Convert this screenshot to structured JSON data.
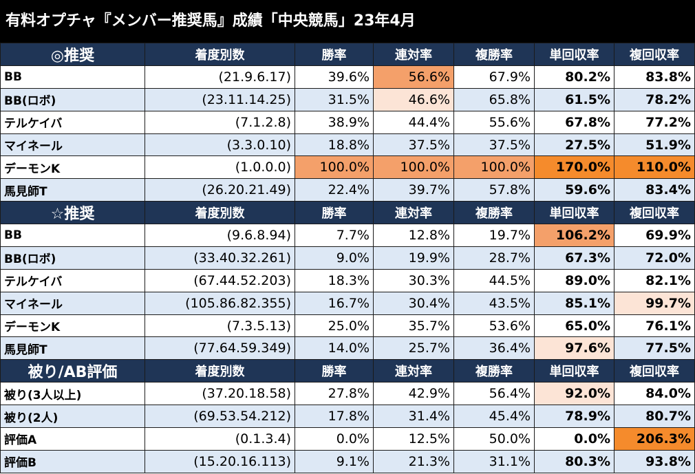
{
  "title": "有料オプチャ『メンバー推奨馬』成績「中央競馬」23年4月",
  "columns": [
    "着度別数",
    "勝率",
    "連対率",
    "複勝率",
    "単回収率",
    "複回収率"
  ],
  "colors": {
    "header": "#1f3556",
    "alt_row": "#dde8f5",
    "hl_strong": "#f58b2c",
    "hl_mid": "#f5b084",
    "hl_light": "#fce4d6"
  },
  "sections": [
    {
      "label": "◎推奨",
      "rows": [
        {
          "name": "BB",
          "counts": "(21.9.6.17)",
          "win": "39.6%",
          "place2": "56.6%",
          "place3": "67.9%",
          "tan": "80.2%",
          "fuku": "83.8%"
        },
        {
          "name": "BB(ロボ)",
          "counts": "(23.11.14.25)",
          "win": "31.5%",
          "place2": "46.6%",
          "place3": "65.8%",
          "tan": "61.5%",
          "fuku": "78.2%"
        },
        {
          "name": "テルケイバ",
          "counts": "(7.1.2.8)",
          "win": "38.9%",
          "place2": "44.4%",
          "place3": "55.6%",
          "tan": "67.8%",
          "fuku": "77.2%"
        },
        {
          "name": "マイネール",
          "counts": "(3.3.0.10)",
          "win": "18.8%",
          "place2": "37.5%",
          "place3": "37.5%",
          "tan": "27.5%",
          "fuku": "51.9%"
        },
        {
          "name": "デーモンK",
          "counts": "(1.0.0.0)",
          "win": "100.0%",
          "place2": "100.0%",
          "place3": "100.0%",
          "tan": "170.0%",
          "fuku": "110.0%"
        },
        {
          "name": "馬見師T",
          "counts": "(26.20.21.49)",
          "win": "22.4%",
          "place2": "39.7%",
          "place3": "57.8%",
          "tan": "59.6%",
          "fuku": "83.4%"
        }
      ]
    },
    {
      "label": "☆推奨",
      "rows": [
        {
          "name": "BB",
          "counts": "(9.6.8.94)",
          "win": "7.7%",
          "place2": "12.8%",
          "place3": "19.7%",
          "tan": "106.2%",
          "fuku": "69.9%"
        },
        {
          "name": "BB(ロボ)",
          "counts": "(33.40.32.261)",
          "win": "9.0%",
          "place2": "19.9%",
          "place3": "28.7%",
          "tan": "67.3%",
          "fuku": "72.0%"
        },
        {
          "name": "テルケイバ",
          "counts": "(67.44.52.203)",
          "win": "18.3%",
          "place2": "30.3%",
          "place3": "44.5%",
          "tan": "89.0%",
          "fuku": "82.1%"
        },
        {
          "name": "マイネール",
          "counts": "(105.86.82.355)",
          "win": "16.7%",
          "place2": "30.4%",
          "place3": "43.5%",
          "tan": "85.1%",
          "fuku": "99.7%"
        },
        {
          "name": "デーモンK",
          "counts": "(7.3.5.13)",
          "win": "25.0%",
          "place2": "35.7%",
          "place3": "53.6%",
          "tan": "65.0%",
          "fuku": "76.1%"
        },
        {
          "name": "馬見師T",
          "counts": "(77.64.59.349)",
          "win": "14.0%",
          "place2": "25.7%",
          "place3": "36.4%",
          "tan": "97.6%",
          "fuku": "77.5%"
        }
      ]
    },
    {
      "label": "被り/AB評価",
      "rows": [
        {
          "name": "被り(3人以上)",
          "counts": "(37.20.18.58)",
          "win": "27.8%",
          "place2": "42.9%",
          "place3": "56.4%",
          "tan": "92.0%",
          "fuku": "84.0%"
        },
        {
          "name": "被り(2人)",
          "counts": "(69.53.54.212)",
          "win": "17.8%",
          "place2": "31.4%",
          "place3": "45.4%",
          "tan": "78.9%",
          "fuku": "80.7%"
        },
        {
          "name": "評価A",
          "counts": "(0.1.3.4)",
          "win": "0.0%",
          "place2": "12.5%",
          "place3": "50.0%",
          "tan": "0.0%",
          "fuku": "206.3%"
        },
        {
          "name": "評価B",
          "counts": "(15.20.16.113)",
          "win": "9.1%",
          "place2": "21.3%",
          "place3": "31.1%",
          "tan": "80.3%",
          "fuku": "93.8%"
        }
      ]
    }
  ]
}
